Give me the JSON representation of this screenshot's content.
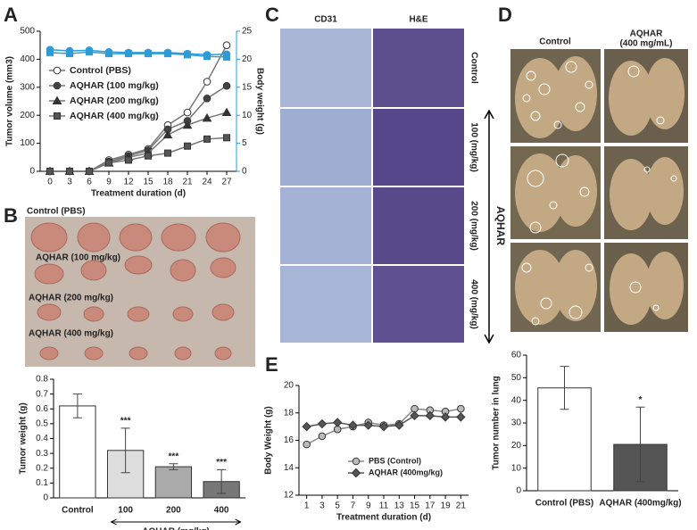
{
  "figure": {
    "panel_labels": [
      "A",
      "B",
      "C",
      "D",
      "E"
    ],
    "panel_b_labels": [
      "Control (PBS)",
      "AQHAR (100 mg/kg)",
      "AQHAR (200 mg/kg)",
      "AQHAR (400 mg/kg)"
    ],
    "panel_c": {
      "columns": [
        "CD31",
        "H&E"
      ],
      "rows": [
        "Control",
        "100 (mg/kg)",
        "200 (mg/kg)",
        "400 (mg/kg)"
      ],
      "group": "AQHAR"
    },
    "panel_d": {
      "control": "Control",
      "treated": [
        "AQHAR",
        "(400 mg/mL)"
      ]
    }
  },
  "chart_data": [
    {
      "type": "line",
      "x": [
        0,
        3,
        6,
        9,
        12,
        15,
        18,
        21,
        24,
        27
      ],
      "xlim": [
        -1.5,
        28.5
      ],
      "xticks": [
        0,
        3,
        6,
        9,
        12,
        15,
        18,
        21,
        24,
        27
      ],
      "ylim": [
        0,
        500
      ],
      "yticks": [
        0,
        100,
        200,
        300,
        400,
        500
      ],
      "y2lim": [
        0,
        25
      ],
      "y2ticks": [
        0,
        5,
        10,
        15,
        20,
        25
      ],
      "xlabel": "Treatment duration (d)",
      "ylabel": "Tumor volume (mm3)",
      "y2label": "Body weight (g)",
      "legend": "center left",
      "series": [
        {
          "name": "Control (PBS)",
          "color": "#777777",
          "marker": "circle",
          "marker_fill": "#ffffff",
          "values": [
            0,
            0,
            0,
            40,
            60,
            80,
            165,
            210,
            320,
            450
          ]
        },
        {
          "name": "AQHAR  (100 mg/kg)",
          "color": "#777777",
          "marker": "circle",
          "marker_fill": "#444444",
          "values": [
            0,
            0,
            0,
            35,
            55,
            75,
            150,
            180,
            260,
            305
          ]
        },
        {
          "name": "AQHAR (200 mg/kg)",
          "color": "#777777",
          "marker": "triangle",
          "marker_fill": "#333333",
          "values": [
            0,
            0,
            0,
            30,
            50,
            65,
            130,
            165,
            190,
            210
          ]
        },
        {
          "name": "AQHAR (400 mg/kg)",
          "color": "#777777",
          "marker": "square",
          "marker_fill": "#555555",
          "values": [
            0,
            0,
            0,
            30,
            40,
            55,
            65,
            90,
            115,
            120
          ]
        },
        {
          "axis": "y2",
          "color": "#2e9bd6",
          "marker": "circle",
          "marker_fill": "#2e9bd6",
          "values": [
            21.7,
            21.5,
            21.6,
            21.3,
            21.2,
            21.2,
            21.2,
            21.0,
            20.8,
            20.9
          ]
        },
        {
          "axis": "y2",
          "color": "#2e9bd6",
          "marker": "square",
          "marker_fill": "#2e9bd6",
          "values": [
            21.2,
            21.0,
            21.3,
            21.0,
            21.0,
            21.0,
            21.0,
            20.8,
            20.5,
            20.4
          ]
        }
      ]
    },
    {
      "type": "bar",
      "categories": [
        "Control",
        "100",
        "200",
        "400"
      ],
      "values": [
        0.62,
        0.32,
        0.21,
        0.11
      ],
      "errors": [
        0.08,
        0.15,
        0.02,
        0.08
      ],
      "annotations": [
        null,
        "***",
        "***",
        "***"
      ],
      "colors": [
        "#ffffff",
        "#dddddd",
        "#aaaaaa",
        "#777777"
      ],
      "ylim": [
        0,
        0.8
      ],
      "yticks": [
        0,
        0.1,
        0.2,
        0.3,
        0.4,
        0.5,
        0.6,
        0.7,
        0.8
      ],
      "ylabel": "Tumor weight (g)",
      "xlabel": "AQHAR (mg/kg)"
    },
    {
      "type": "line",
      "x": [
        1,
        3,
        5,
        7,
        9,
        11,
        13,
        15,
        17,
        19,
        21
      ],
      "xlim": [
        0,
        22
      ],
      "xticks": [
        1,
        3,
        5,
        7,
        9,
        11,
        13,
        15,
        17,
        19,
        21
      ],
      "ylim": [
        12,
        20
      ],
      "yticks": [
        12,
        14,
        16,
        18,
        20
      ],
      "xlabel": "Treatment duration (d)",
      "ylabel": "Body Weight (g)",
      "legend": "lower center",
      "series": [
        {
          "name": "PBS (Control)",
          "color": "#888888",
          "marker": "circle",
          "marker_fill": "#bbbbbb",
          "values": [
            15.7,
            16.3,
            16.8,
            17.0,
            17.3,
            17.1,
            17.2,
            18.3,
            18.2,
            18.1,
            18.3
          ]
        },
        {
          "name": "AQHAR (400mg/kg)",
          "color": "#555555",
          "marker": "diamond",
          "marker_fill": "#555555",
          "values": [
            17.0,
            17.2,
            17.3,
            17.1,
            17.1,
            17.0,
            17.1,
            17.8,
            17.8,
            17.7,
            17.7
          ]
        }
      ]
    },
    {
      "type": "bar",
      "categories": [
        "Control (PBS)",
        "AQHAR (400mg/kg)"
      ],
      "values": [
        45.5,
        20.5
      ],
      "errors": [
        9.5,
        16.5
      ],
      "annotations": [
        null,
        "*"
      ],
      "colors": [
        "#ffffff",
        "#555555"
      ],
      "ylim": [
        0,
        60
      ],
      "yticks": [
        0,
        10,
        20,
        30,
        40,
        50,
        60
      ],
      "ylabel": "Tumor number in lung"
    }
  ]
}
